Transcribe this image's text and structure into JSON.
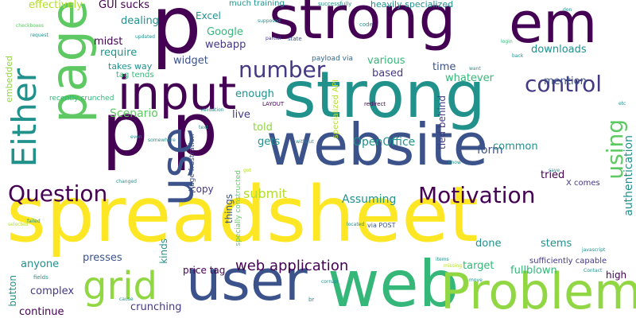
{
  "words": {
    "spreadsheet": "spreadsheet",
    "strong_top": "strong",
    "strong_mid": "strong",
    "p_top": "p",
    "p_p": "p p",
    "em": "em",
    "website": "website",
    "page": "page",
    "input": "input",
    "Either": "Either",
    "use": "use",
    "user": "user",
    "web": "web",
    "Problem": "Problem",
    "grid": "grid",
    "Question": "Question",
    "Motivation": "Motivation",
    "number": "number",
    "control": "control",
    "using": "using",
    "web_application": "web application",
    "Scenario": "Scenario",
    "form": "form",
    "OpenOffice": "OpenOffice",
    "submit": "submit",
    "Assuming": "Assuming",
    "authentication": "authentication",
    "fullblown": "fullblown",
    "sufficiently_capable": "sufficiently capable",
    "presses": "presses",
    "price_tag": "price tag",
    "crunching": "crunching",
    "complex": "complex",
    "continue": "continue",
    "anyone": "anyone",
    "button": "button",
    "kinds": "kinds",
    "things": "things",
    "copy": "copy",
    "target": "target",
    "done": "done",
    "stems": "stems",
    "high": "high",
    "tried": "tried",
    "X_comes": "X comes",
    "common": "common",
    "tied_behind": "tied behind",
    "mention": "mention",
    "whatever": "whatever",
    "time": "time",
    "based": "based",
    "various": "various",
    "downloads": "downloads",
    "told": "told",
    "live": "live",
    "gets": "gets",
    "enough": "enough",
    "widget": "widget",
    "webapp": "webapp",
    "Google": "Google",
    "Excel": "Excel",
    "much_training": "much training",
    "effectively": "effectively",
    "GUI_sucks": "GUI sucks",
    "dealing": "dealing",
    "midst": "midst",
    "require": "require",
    "takes_way": "takes way",
    "tag_tends": "tag tends",
    "embedded": "embedded",
    "recently_crunched": "recently crunched",
    "heavily_specialized": "heavily specialized",
    "specialized_API": "specialized API",
    "huge_frustration": "huge frustration",
    "specially_constructed": "specially constructed",
    "via_POST": "via POST",
    "payload_via": "payload via",
    "LAYOUT": "LAYOUT",
    "redirect": "redirect",
    "successfully": "successfully",
    "state": "state",
    "code": "code",
    "partial": "partial",
    "updated": "updated",
    "supposed": "supposed",
    "login": "login",
    "want": "want",
    "back": "back",
    "javascript": "javascript",
    "validation": "validation",
    "checkboxes": "checkboxes",
    "request": "request",
    "fields": "fields",
    "failed": "failed",
    "located": "located",
    "without": "without",
    "know": "know",
    "changed": "changed",
    "cause": "cause",
    "br": "br",
    "corrupt": "corrupt",
    "save": "save",
    "items": "items",
    "Contact": "Contact",
    "etc": "etc",
    "don": "don",
    "move": "move",
    "somewhere": "somewhere",
    "even": "even",
    "text": "text",
    "selected": "selected",
    "missing": "missing",
    "got": "got"
  }
}
